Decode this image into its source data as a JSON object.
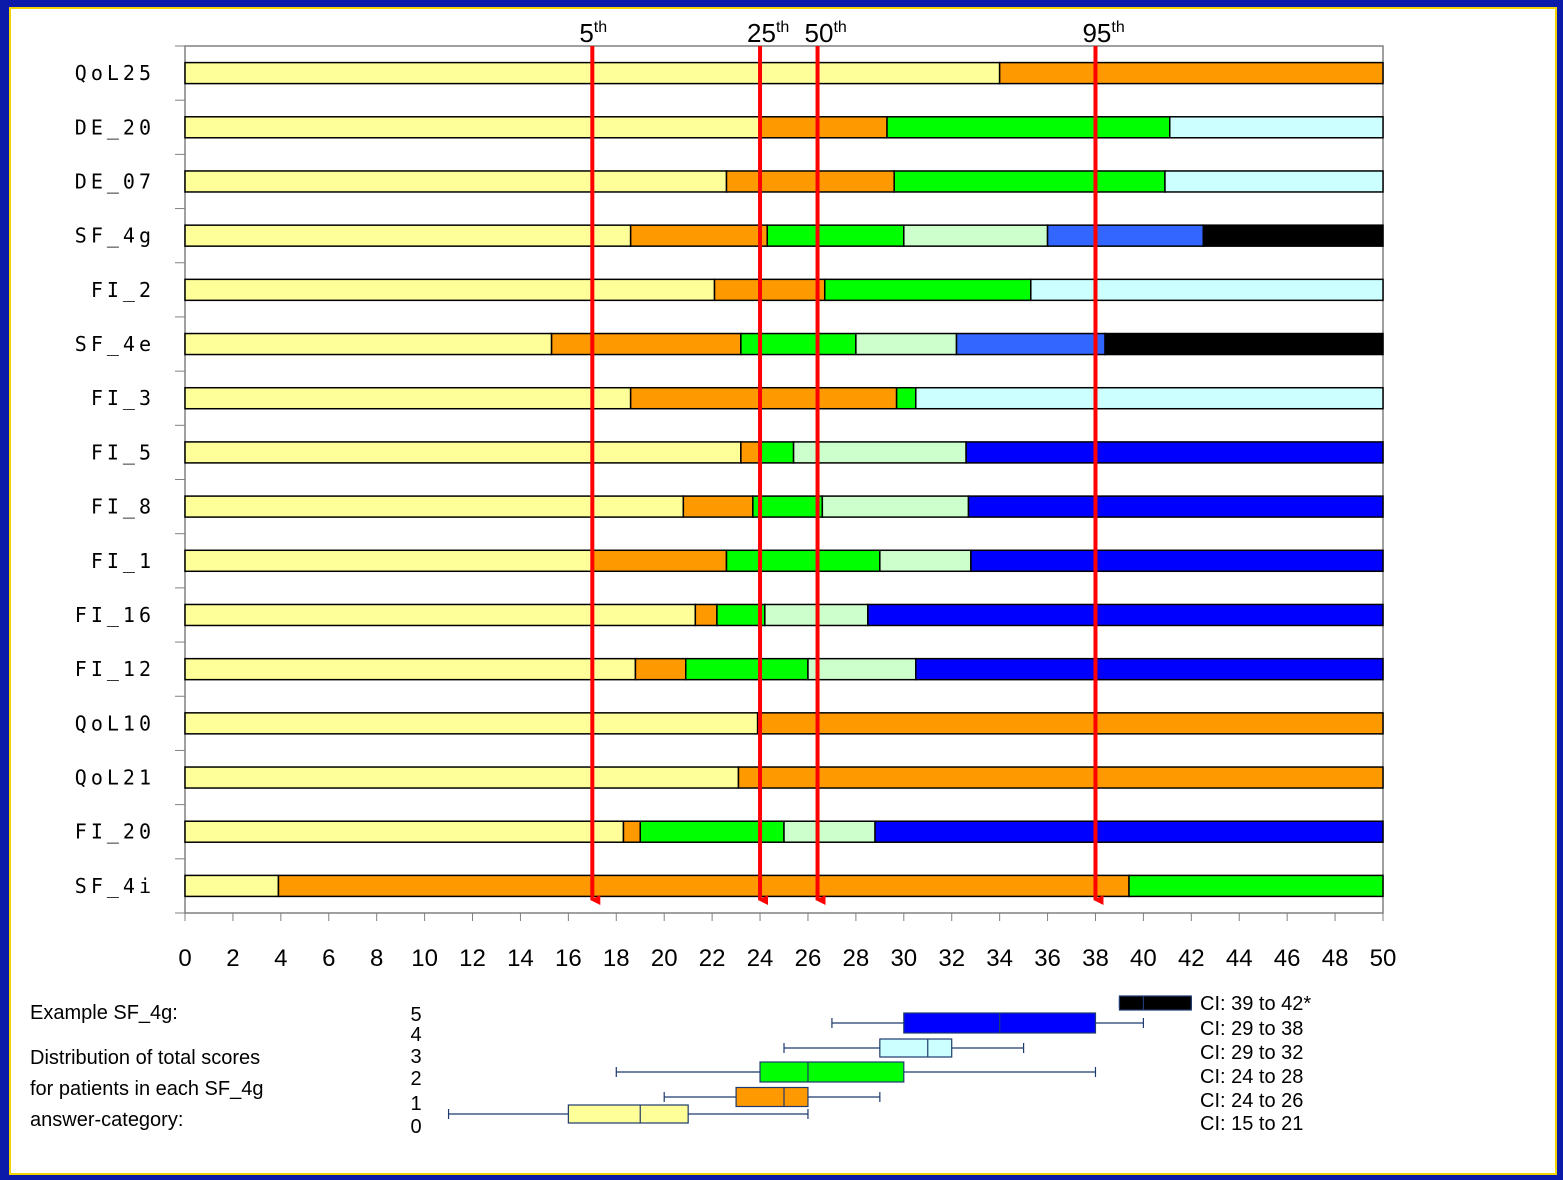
{
  "chart_data": {
    "type": "bar",
    "orientation": "horizontal-stacked",
    "xlim": [
      0,
      50
    ],
    "x_ticks": [
      "0",
      "2",
      "4",
      "6",
      "8",
      "10",
      "12",
      "14",
      "16",
      "18",
      "20",
      "22",
      "24",
      "26",
      "28",
      "30",
      "32",
      "34",
      "36",
      "38",
      "40",
      "42",
      "44",
      "46",
      "48",
      "50"
    ],
    "category_colors": [
      "#ffff99",
      "#ff9900",
      "#00ff00",
      "#ccffcc",
      "#ccffff",
      "#3366ff",
      "#0000ff",
      "#000000"
    ],
    "items": [
      {
        "label": "QoL25",
        "thresholds": [
          34
        ],
        "colors": [
          "#ffff99",
          "#ff9900"
        ]
      },
      {
        "label": "DE_20",
        "thresholds": [
          24,
          29.3,
          41.1
        ],
        "colors": [
          "#ffff99",
          "#ff9900",
          "#00ff00",
          "#ccffff"
        ]
      },
      {
        "label": "DE_07",
        "thresholds": [
          22.6,
          29.6,
          40.9
        ],
        "colors": [
          "#ffff99",
          "#ff9900",
          "#00ff00",
          "#ccffff"
        ]
      },
      {
        "label": "SF_4g",
        "thresholds": [
          18.6,
          24.3,
          30,
          36,
          42.5
        ],
        "colors": [
          "#ffff99",
          "#ff9900",
          "#00ff00",
          "#ccffcc",
          "#3366ff",
          "#000000"
        ]
      },
      {
        "label": "FI_2",
        "thresholds": [
          22.1,
          26.7,
          35.3
        ],
        "colors": [
          "#ffff99",
          "#ff9900",
          "#00ff00",
          "#ccffff"
        ]
      },
      {
        "label": "SF_4e",
        "thresholds": [
          15.3,
          23.2,
          28,
          32.2,
          38.4
        ],
        "colors": [
          "#ffff99",
          "#ff9900",
          "#00ff00",
          "#ccffcc",
          "#3366ff",
          "#000000"
        ]
      },
      {
        "label": "FI_3",
        "thresholds": [
          18.6,
          29.7,
          30.5
        ],
        "colors": [
          "#ffff99",
          "#ff9900",
          "#00ff00",
          "#ccffff"
        ]
      },
      {
        "label": "FI_5",
        "thresholds": [
          23.2,
          24,
          25.4,
          32.6
        ],
        "colors": [
          "#ffff99",
          "#ff9900",
          "#00ff00",
          "#ccffcc",
          "#0000ff"
        ]
      },
      {
        "label": "FI_8",
        "thresholds": [
          20.8,
          23.7,
          26.6,
          32.7
        ],
        "colors": [
          "#ffff99",
          "#ff9900",
          "#00ff00",
          "#ccffcc",
          "#0000ff"
        ]
      },
      {
        "label": "FI_1",
        "thresholds": [
          17,
          22.6,
          29,
          32.8
        ],
        "colors": [
          "#ffff99",
          "#ff9900",
          "#00ff00",
          "#ccffcc",
          "#0000ff"
        ]
      },
      {
        "label": "FI_16",
        "thresholds": [
          21.3,
          22.2,
          24.2,
          28.5
        ],
        "colors": [
          "#ffff99",
          "#ff9900",
          "#00ff00",
          "#ccffcc",
          "#0000ff"
        ]
      },
      {
        "label": "FI_12",
        "thresholds": [
          18.8,
          20.9,
          26,
          30.5
        ],
        "colors": [
          "#ffff99",
          "#ff9900",
          "#00ff00",
          "#ccffcc",
          "#0000ff"
        ]
      },
      {
        "label": "QoL10",
        "thresholds": [
          23.9
        ],
        "colors": [
          "#ffff99",
          "#ff9900"
        ]
      },
      {
        "label": "QoL21",
        "thresholds": [
          23.1
        ],
        "colors": [
          "#ffff99",
          "#ff9900"
        ]
      },
      {
        "label": "FI_20",
        "thresholds": [
          18.3,
          19,
          25,
          28.8
        ],
        "colors": [
          "#ffff99",
          "#ff9900",
          "#00ff00",
          "#ccffcc",
          "#0000ff"
        ]
      },
      {
        "label": "SF_4i",
        "thresholds": [
          3.9,
          39.4
        ],
        "colors": [
          "#ffff99",
          "#ff9900",
          "#00ff00"
        ]
      }
    ],
    "percentiles": [
      {
        "value": 17,
        "label": "5",
        "sup": "th"
      },
      {
        "value": 24,
        "label": "25",
        "sup": "th"
      },
      {
        "value": 26.4,
        "label": "50",
        "sup": "th"
      },
      {
        "value": 38,
        "label": "95",
        "sup": "th"
      }
    ],
    "percentile_color": "#ff0000",
    "example": {
      "title": "Example SF_4g:",
      "description": [
        "Distribution of total scores",
        "for patients in each SF_4g",
        "answer-category:"
      ],
      "boxplots": [
        {
          "category": "5",
          "min": 39,
          "q1": 39,
          "median": 40,
          "q3": 42,
          "max": 42,
          "color": "#000000",
          "ci": "CI: 39 to 42*"
        },
        {
          "category": "4",
          "min": 27,
          "q1": 30,
          "median": 34,
          "q3": 38,
          "max": 40,
          "color": "#0000ff",
          "ci": "CI: 29 to 38"
        },
        {
          "category": "3",
          "min": 25,
          "q1": 29,
          "median": 31,
          "q3": 32,
          "max": 35,
          "color": "#ccffff",
          "ci": "CI: 29 to 32"
        },
        {
          "category": "2",
          "min": 18,
          "q1": 24,
          "median": 26,
          "q3": 30,
          "max": 38,
          "color": "#00ff00",
          "ci": "CI: 24 to 28"
        },
        {
          "category": "1",
          "min": 20,
          "q1": 23,
          "median": 25,
          "q3": 26,
          "max": 29,
          "color": "#ff9900",
          "ci": "CI: 24 to 26"
        },
        {
          "category": "0",
          "min": 11,
          "q1": 16,
          "median": 19,
          "q3": 21,
          "max": 26,
          "color": "#ffff99",
          "ci": "CI: 15 to 21"
        }
      ]
    }
  }
}
